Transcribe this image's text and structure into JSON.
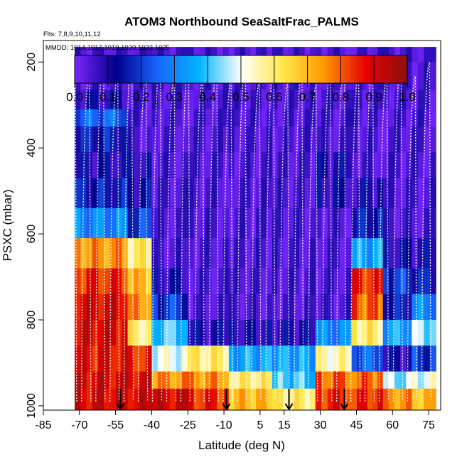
{
  "chart_data": {
    "type": "heatmap",
    "title": "ATOM3 Northbound SeaSaltFrac_PALMS",
    "subtitle_flights": "Flts: 7,8,9,10,11,12",
    "subtitle_dates": "MMDD: 1014,1017,1019,1020,1023,1025",
    "xlabel": "Latitude (deg N)",
    "ylabel": "PSXC (mbar)",
    "xlim": [
      -85,
      80
    ],
    "ylim": [
      1010,
      150
    ],
    "x_ticks": [
      -85,
      -70,
      -55,
      -40,
      -25,
      -10,
      5,
      15,
      30,
      45,
      60,
      75
    ],
    "y_ticks": [
      200,
      400,
      600,
      800,
      1000
    ],
    "colorbar": {
      "min": 0.0,
      "max": 1.0,
      "ticks": [
        "0.0",
        "0.1",
        "0.2",
        "0.3",
        "0.4",
        "0.5",
        "0.6",
        "0.7",
        "0.8",
        "0.9",
        "1.0"
      ],
      "colors": [
        "#7a26ff",
        "#00008b",
        "#1a64ff",
        "#00b4ff",
        "#ffffff",
        "#ffe84a",
        "#ff9800",
        "#e60000",
        "#8b1010"
      ]
    },
    "pressure_levels": [
      {
        "top": 165,
        "bottom": 200
      },
      {
        "top": 200,
        "bottom": 265
      },
      {
        "top": 265,
        "bottom": 310
      },
      {
        "top": 310,
        "bottom": 350
      },
      {
        "top": 350,
        "bottom": 410
      },
      {
        "top": 410,
        "bottom": 470
      },
      {
        "top": 470,
        "bottom": 540
      },
      {
        "top": 540,
        "bottom": 610
      },
      {
        "top": 610,
        "bottom": 680
      },
      {
        "top": 680,
        "bottom": 740
      },
      {
        "top": 740,
        "bottom": 800
      },
      {
        "top": 800,
        "bottom": 860
      },
      {
        "top": 860,
        "bottom": 920
      },
      {
        "top": 920,
        "bottom": 960
      },
      {
        "top": 960,
        "bottom": 1010
      }
    ],
    "segments": [
      {
        "lat": [
          -72,
          -50
        ],
        "values": [
          0.05,
          0.05,
          0.1,
          0.25,
          0.15,
          0.1,
          0.15,
          0.3,
          0.75,
          0.85,
          0.9,
          0.9,
          0.88,
          0.9,
          0.9
        ]
      },
      {
        "lat": [
          -50,
          -40
        ],
        "values": [
          0.05,
          0.05,
          0.05,
          0.05,
          0.05,
          0.1,
          0.12,
          0.2,
          0.6,
          0.7,
          0.75,
          0.6,
          0.85,
          0.9,
          0.9
        ]
      },
      {
        "lat": [
          -40,
          -25
        ],
        "values": [
          0.05,
          0.05,
          0.05,
          0.05,
          0.05,
          0.05,
          0.05,
          0.05,
          0.05,
          0.1,
          0.2,
          0.4,
          0.5,
          0.75,
          0.9
        ]
      },
      {
        "lat": [
          -25,
          -8
        ],
        "values": [
          0.05,
          0.05,
          0.05,
          0.05,
          0.05,
          0.05,
          0.05,
          0.05,
          0.05,
          0.05,
          0.05,
          0.1,
          0.6,
          0.75,
          0.85
        ]
      },
      {
        "lat": [
          -8,
          10
        ],
        "values": [
          0.05,
          0.05,
          0.05,
          0.05,
          0.05,
          0.05,
          0.05,
          0.05,
          0.05,
          0.05,
          0.05,
          0.1,
          0.35,
          0.6,
          0.7
        ]
      },
      {
        "lat": [
          10,
          28
        ],
        "values": [
          0.05,
          0.05,
          0.05,
          0.05,
          0.05,
          0.05,
          0.05,
          0.05,
          0.05,
          0.05,
          0.05,
          0.1,
          0.35,
          0.4,
          0.6
        ]
      },
      {
        "lat": [
          28,
          43
        ],
        "values": [
          0.05,
          0.05,
          0.05,
          0.05,
          0.05,
          0.1,
          0.1,
          0.05,
          0.05,
          0.05,
          0.05,
          0.3,
          0.55,
          0.8,
          0.85
        ]
      },
      {
        "lat": [
          43,
          56
        ],
        "values": [
          0.05,
          0.05,
          0.05,
          0.05,
          0.05,
          0.05,
          0.1,
          0.15,
          0.35,
          0.85,
          0.8,
          0.6,
          0.25,
          0.8,
          0.85
        ]
      },
      {
        "lat": [
          56,
          68
        ],
        "values": [
          0.05,
          0.05,
          0.05,
          0.05,
          0.05,
          0.05,
          0.05,
          0.05,
          0.1,
          0.2,
          0.15,
          0.35,
          0.1,
          0.45,
          0.75
        ]
      },
      {
        "lat": [
          68,
          78
        ],
        "values": [
          0.05,
          0.05,
          0.05,
          0.05,
          0.05,
          0.05,
          0.05,
          0.05,
          0.1,
          0.15,
          0.3,
          0.45,
          0.2,
          0.5,
          0.7
        ]
      }
    ],
    "profile_arrows_lat": [
      -53,
      -9,
      17,
      40
    ]
  }
}
